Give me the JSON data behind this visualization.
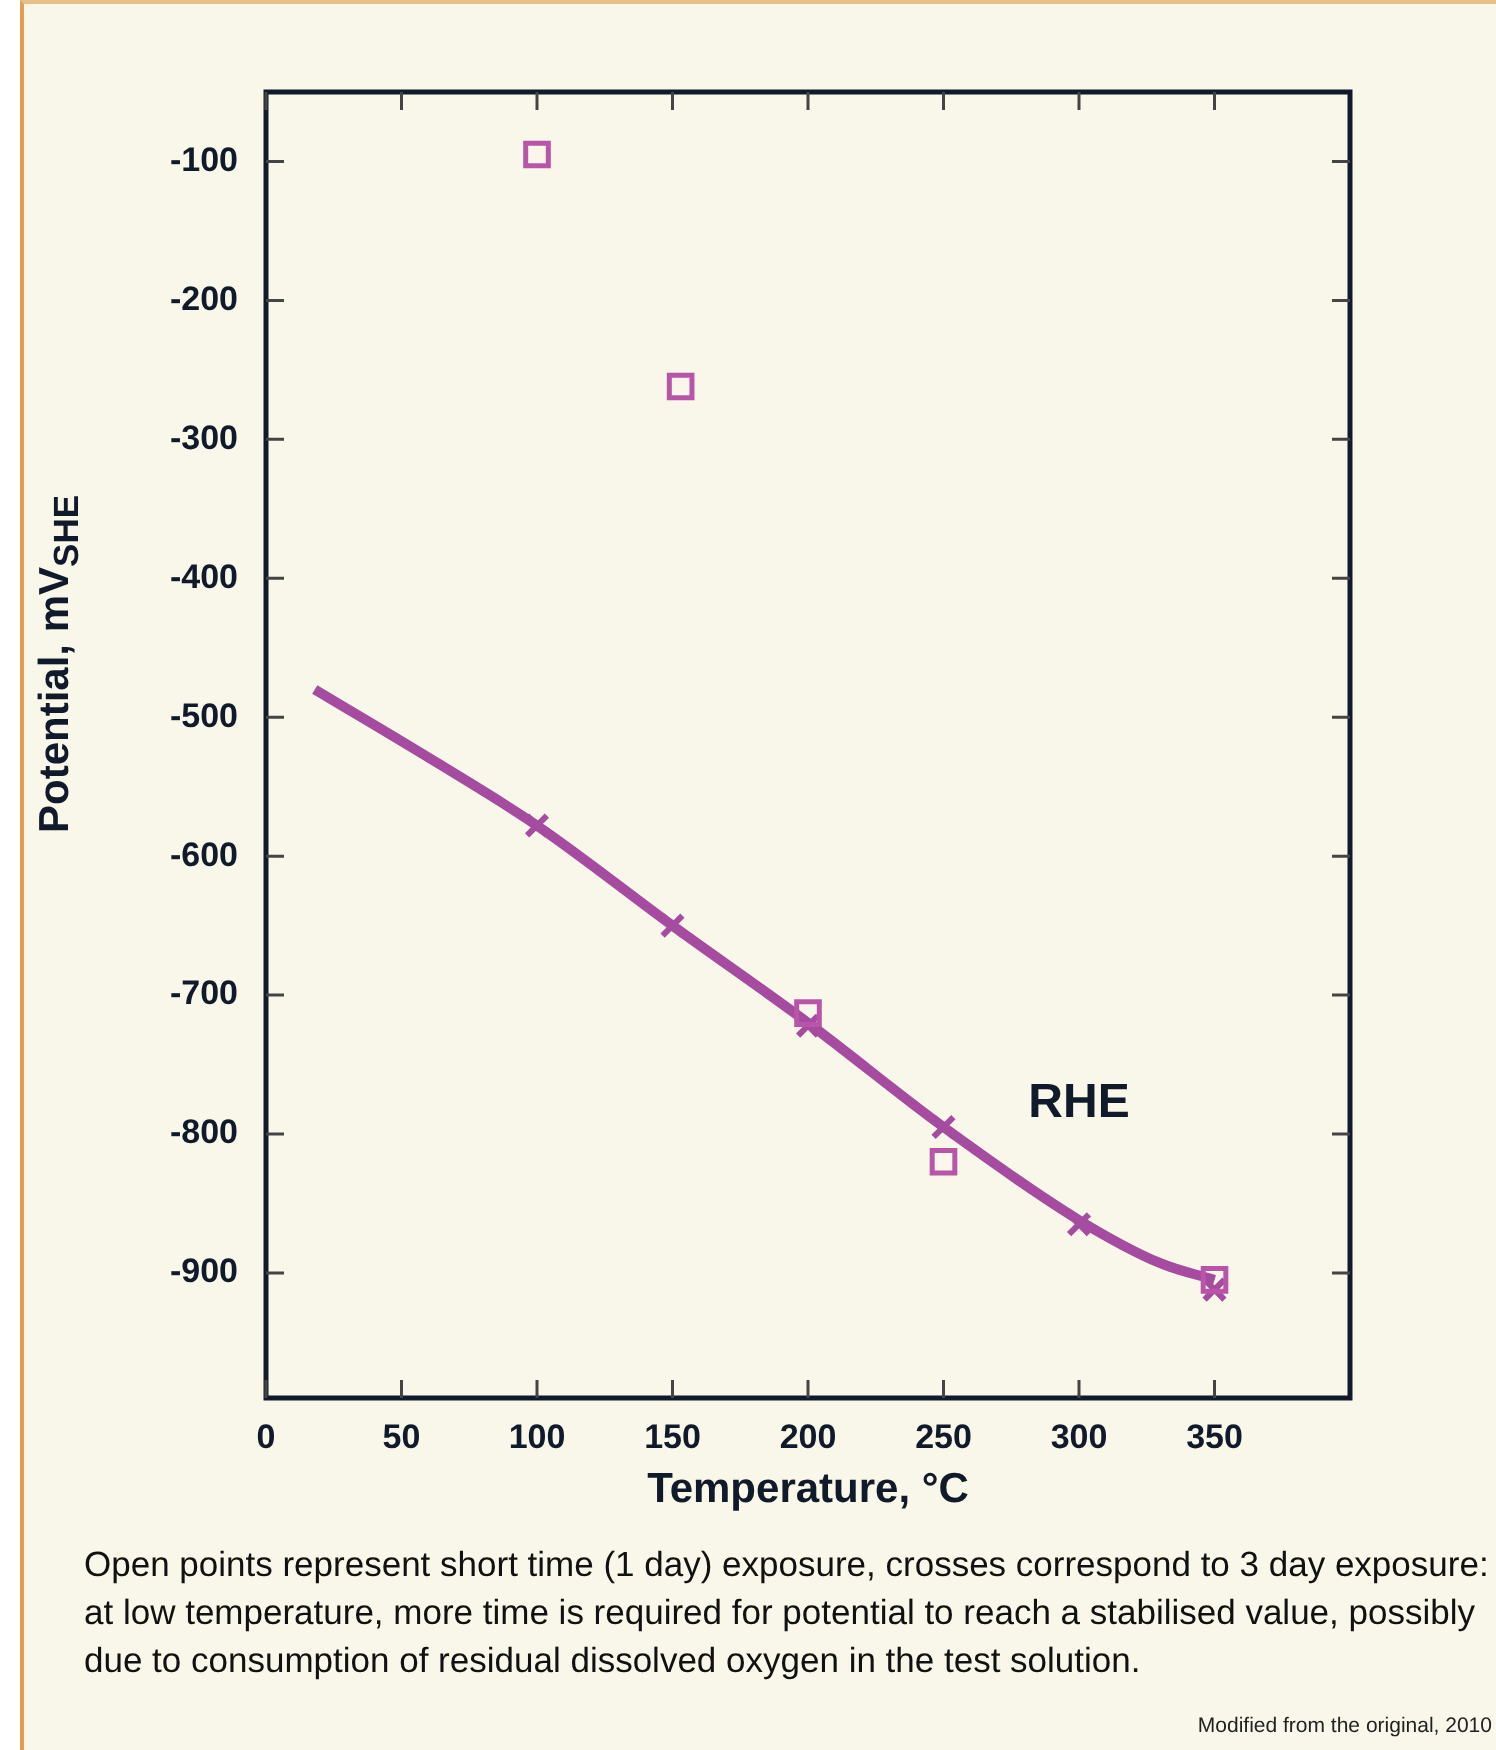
{
  "chart_data": {
    "type": "scatter",
    "xlabel": "Temperature, °C",
    "ylabel": "Potential, mV$_{SHE}$",
    "xlim": [
      0,
      400
    ],
    "xticks": [
      0,
      50,
      100,
      150,
      200,
      250,
      300,
      350
    ],
    "ylim": [
      -990,
      -50
    ],
    "yticks": [
      -100,
      -200,
      -300,
      -400,
      -500,
      -600,
      -700,
      -800,
      -900
    ],
    "legend": false,
    "series": [
      {
        "type": "line",
        "name": "RHE",
        "color": "#a64ca0",
        "marker": "none",
        "x": [
          18,
          65,
          100,
          150,
          200,
          250,
          300,
          330,
          350
        ],
        "values": [
          -480,
          -535,
          -578,
          -650,
          -720,
          -795,
          -862,
          -893,
          -905
        ]
      },
      {
        "color": "#b855a8",
        "marker": "square",
        "x": [
          100,
          153,
          200,
          250,
          350
        ],
        "values": [
          -95,
          -262,
          -713,
          -820,
          -905
        ]
      },
      {
        "color": "#a64ca0",
        "marker": "cross",
        "x": [
          100,
          150,
          200,
          250,
          300,
          350
        ],
        "values": [
          -578,
          -650,
          -722,
          -795,
          -865,
          -912
        ]
      }
    ],
    "annotations": [
      "Open points represent short time (1 day) exposure, crosses correspond to 3 day exposure: at low temperature, more time is required for potential to reach a stabilised value, possibly due to consumption of residual dissolved oxygen in the test solution.",
      "Modified from the original, 2010"
    ]
  }
}
